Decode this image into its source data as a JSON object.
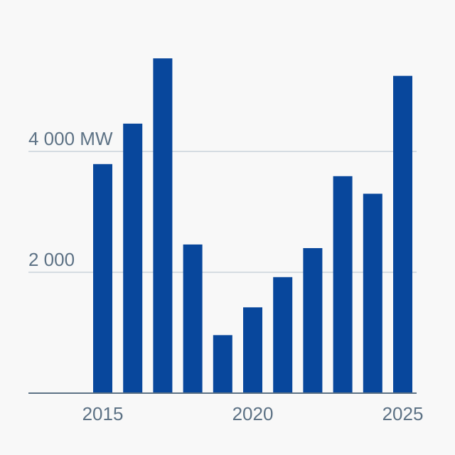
{
  "chart_data": {
    "type": "bar",
    "categories": [
      "2015",
      "2016",
      "2017",
      "2018",
      "2019",
      "2020",
      "2021",
      "2022",
      "2023",
      "2024",
      "2025"
    ],
    "values": [
      3790,
      4460,
      5540,
      2460,
      960,
      1420,
      1920,
      2400,
      3590,
      3300,
      5250
    ],
    "title": "",
    "xlabel": "",
    "ylabel": "",
    "unit": "MW",
    "ylim": [
      0,
      6000
    ],
    "x_tick_labels": [
      "2015",
      "2020",
      "2025"
    ],
    "y_tick_labels": [
      {
        "value": 2000,
        "label": "2 000"
      },
      {
        "value": 4000,
        "label": "4 000 MW"
      }
    ],
    "grid": true,
    "legend": "none",
    "colors": {
      "bar": "#08479c",
      "grid": "#c9d2da",
      "axis": "#5d7285",
      "tick_text": "#5d7285",
      "background": "#f8f8f8"
    }
  }
}
